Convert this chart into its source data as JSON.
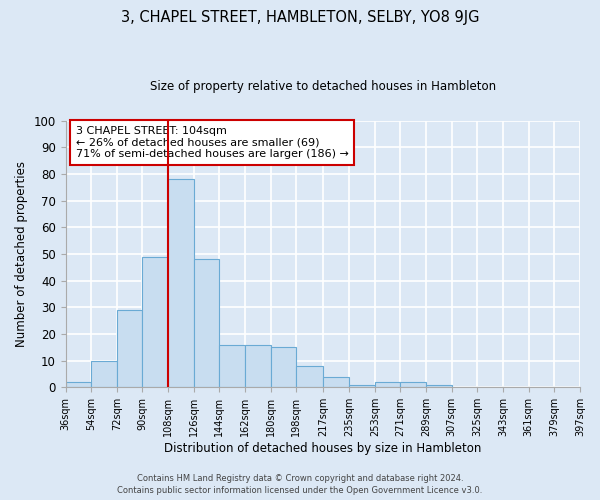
{
  "title": "3, CHAPEL STREET, HAMBLETON, SELBY, YO8 9JG",
  "subtitle": "Size of property relative to detached houses in Hambleton",
  "xlabel": "Distribution of detached houses by size in Hambleton",
  "ylabel": "Number of detached properties",
  "bar_color": "#c8ddf0",
  "bar_edge_color": "#6aaad4",
  "background_color": "#dce8f5",
  "fig_background_color": "#dce8f5",
  "grid_color": "#ffffff",
  "bins": [
    36,
    54,
    72,
    90,
    108,
    126,
    144,
    162,
    180,
    198,
    217,
    235,
    253,
    271,
    289,
    307,
    325,
    343,
    361,
    379,
    397
  ],
  "counts": [
    2,
    10,
    29,
    49,
    78,
    48,
    16,
    16,
    15,
    8,
    4,
    1,
    2,
    2,
    1,
    0,
    0,
    0,
    0,
    0
  ],
  "tick_labels": [
    "36sqm",
    "54sqm",
    "72sqm",
    "90sqm",
    "108sqm",
    "126sqm",
    "144sqm",
    "162sqm",
    "180sqm",
    "198sqm",
    "217sqm",
    "235sqm",
    "253sqm",
    "271sqm",
    "289sqm",
    "307sqm",
    "325sqm",
    "343sqm",
    "361sqm",
    "379sqm",
    "397sqm"
  ],
  "vline_x": 108,
  "vline_color": "#cc0000",
  "annotation_text": "3 CHAPEL STREET: 104sqm\n← 26% of detached houses are smaller (69)\n71% of semi-detached houses are larger (186) →",
  "annotation_box_color": "#ffffff",
  "annotation_box_edge": "#cc0000",
  "ylim": [
    0,
    100
  ],
  "yticks": [
    0,
    10,
    20,
    30,
    40,
    50,
    60,
    70,
    80,
    90,
    100
  ],
  "footer_line1": "Contains HM Land Registry data © Crown copyright and database right 2024.",
  "footer_line2": "Contains public sector information licensed under the Open Government Licence v3.0."
}
